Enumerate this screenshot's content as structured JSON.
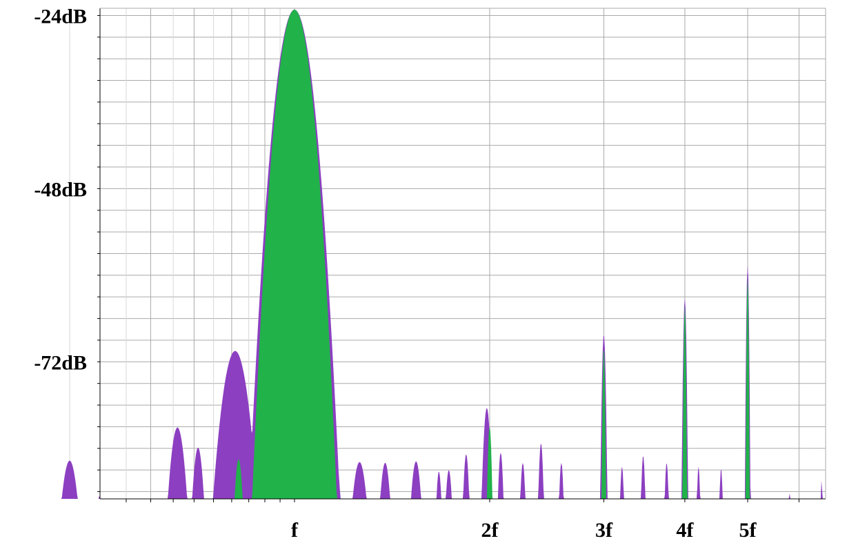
{
  "chart_data": {
    "type": "area",
    "title": "",
    "xlabel": "",
    "ylabel": "",
    "x_scale": "log",
    "x_tick_labels": [
      "f",
      "2f",
      "3f",
      "4f",
      "5f"
    ],
    "x_tick_values": [
      1,
      2,
      3,
      4,
      5
    ],
    "x_range": [
      0.35,
      7.5
    ],
    "y_tick_labels": [
      "-24dB",
      "-48dB",
      "-72dB"
    ],
    "y_tick_values": [
      -24,
      -48,
      -72
    ],
    "y_range": [
      -91,
      -23
    ],
    "grid": true,
    "colors": {
      "purple": "#8c3fc1",
      "green": "#21b24a",
      "grid": "#a9a9a9",
      "axis": "#000000"
    },
    "series": [
      {
        "peaks": [
          {
            "x": 0.45,
            "db": -85.7,
            "w": 0.028
          },
          {
            "x": 0.5,
            "db": -90.6,
            "w": 0.01
          },
          {
            "x": 0.66,
            "db": -81.1,
            "w": 0.025
          },
          {
            "x": 0.71,
            "db": -83.9,
            "w": 0.018
          },
          {
            "x": 0.81,
            "db": -70.5,
            "w": 0.04
          },
          {
            "x": 1.0,
            "db": -23.2,
            "w": 0.045
          },
          {
            "x": 1.1,
            "db": -71.0,
            "w": 0.035
          },
          {
            "x": 1.26,
            "db": -85.9,
            "w": 0.025
          },
          {
            "x": 1.38,
            "db": -86.0,
            "w": 0.018
          },
          {
            "x": 1.54,
            "db": -85.8,
            "w": 0.018
          },
          {
            "x": 1.67,
            "db": -87.2,
            "w": 0.01
          },
          {
            "x": 1.73,
            "db": -87.0,
            "w": 0.012
          },
          {
            "x": 1.84,
            "db": -84.8,
            "w": 0.01
          },
          {
            "x": 1.98,
            "db": -78.4,
            "w": 0.012
          },
          {
            "x": 2.08,
            "db": -84.6,
            "w": 0.009
          },
          {
            "x": 2.25,
            "db": -86.0,
            "w": 0.009
          },
          {
            "x": 2.4,
            "db": -83.3,
            "w": 0.008
          },
          {
            "x": 2.58,
            "db": -86.0,
            "w": 0.008
          },
          {
            "x": 3.0,
            "db": -68.2,
            "w": 0.006
          },
          {
            "x": 3.2,
            "db": -86.5,
            "w": 0.007
          },
          {
            "x": 3.45,
            "db": -85.0,
            "w": 0.007
          },
          {
            "x": 3.75,
            "db": -86.0,
            "w": 0.007
          },
          {
            "x": 4.0,
            "db": -63.2,
            "w": 0.005
          },
          {
            "x": 4.2,
            "db": -86.5,
            "w": 0.006
          },
          {
            "x": 4.55,
            "db": -86.8,
            "w": 0.006
          },
          {
            "x": 5.0,
            "db": -58.6,
            "w": 0.004
          },
          {
            "x": 5.8,
            "db": -90.0,
            "w": 0.004
          },
          {
            "x": 6.5,
            "db": -88.4,
            "w": 0.004
          }
        ]
      },
      {
        "peaks": [
          {
            "x": 0.82,
            "db": -85.5,
            "w": 0.014
          },
          {
            "x": 1.0,
            "db": -23.2,
            "w": 0.042
          },
          {
            "x": 2.0,
            "db": -81.0,
            "w": 0.007
          },
          {
            "x": 3.0,
            "db": -70.0,
            "w": 0.004
          },
          {
            "x": 4.0,
            "db": -64.0,
            "w": 0.0035
          },
          {
            "x": 5.0,
            "db": -60.0,
            "w": 0.003
          }
        ]
      }
    ]
  }
}
